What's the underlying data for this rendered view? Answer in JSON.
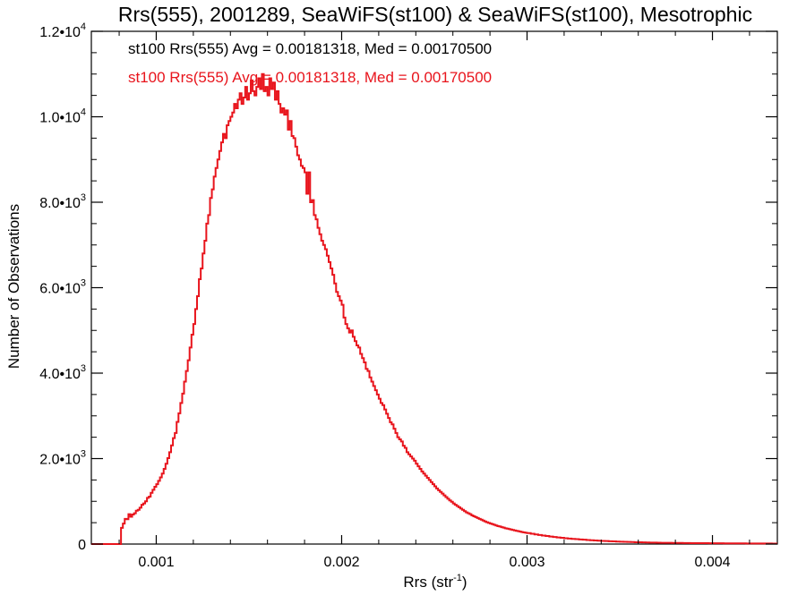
{
  "chart_data": {
    "type": "histogram",
    "title": "Rrs(555), 2001289, SeaWiFS(st100) & SeaWiFS(st100), Mesotrophic",
    "xlabel_main": "Rrs (str",
    "xlabel_sup": "-1",
    "xlabel_close": ")",
    "ylabel": "Number of Observations",
    "xlim": [
      0.00065,
      0.00435
    ],
    "ylim": [
      0,
      12000
    ],
    "x_ticks": [
      {
        "value": 0.001,
        "label": "0.001"
      },
      {
        "value": 0.002,
        "label": "0.002"
      },
      {
        "value": 0.003,
        "label": "0.003"
      },
      {
        "value": 0.004,
        "label": "0.004"
      }
    ],
    "y_ticks": [
      {
        "value": 0,
        "mant": "0",
        "exp": ""
      },
      {
        "value": 2000,
        "mant": "2.0•10",
        "exp": "3"
      },
      {
        "value": 4000,
        "mant": "4.0•10",
        "exp": "3"
      },
      {
        "value": 6000,
        "mant": "6.0•10",
        "exp": "3"
      },
      {
        "value": 8000,
        "mant": "8.0•10",
        "exp": "3"
      },
      {
        "value": 10000,
        "mant": "1.0•10",
        "exp": "4"
      },
      {
        "value": 12000,
        "mant": "1.2•10",
        "exp": "4"
      }
    ],
    "annotations": [
      {
        "text": "st100 Rrs(555) Avg = 0.00181318, Med = 0.00170500",
        "color": "#000000"
      },
      {
        "text": "st100 Rrs(555) Avg = 0.00181318, Med = 0.00170500",
        "color": "#e8141c"
      }
    ],
    "series": [
      {
        "color": "#e8141c",
        "bin_width": 1e-05,
        "bins": [
          [
            0.00065,
            0
          ],
          [
            0.0008,
            0
          ],
          [
            0.00081,
            380
          ],
          [
            0.00082,
            480
          ],
          [
            0.00083,
            590
          ],
          [
            0.00084,
            580
          ],
          [
            0.00085,
            700
          ],
          [
            0.00086,
            640
          ],
          [
            0.00087,
            690
          ],
          [
            0.00088,
            720
          ],
          [
            0.00089,
            780
          ],
          [
            0.0009,
            800
          ],
          [
            0.00091,
            850
          ],
          [
            0.00092,
            920
          ],
          [
            0.00093,
            950
          ],
          [
            0.00094,
            1000
          ],
          [
            0.00095,
            1080
          ],
          [
            0.00096,
            1110
          ],
          [
            0.00097,
            1200
          ],
          [
            0.00098,
            1270
          ],
          [
            0.00099,
            1340
          ],
          [
            0.001,
            1400
          ],
          [
            0.00101,
            1480
          ],
          [
            0.00102,
            1560
          ],
          [
            0.00103,
            1650
          ],
          [
            0.00104,
            1760
          ],
          [
            0.00105,
            1880
          ],
          [
            0.00106,
            2010
          ],
          [
            0.00107,
            2150
          ],
          [
            0.00108,
            2310
          ],
          [
            0.00109,
            2480
          ],
          [
            0.0011,
            2600
          ],
          [
            0.00111,
            2860
          ],
          [
            0.00112,
            3060
          ],
          [
            0.00113,
            3300
          ],
          [
            0.00114,
            3520
          ],
          [
            0.00115,
            3800
          ],
          [
            0.00116,
            4050
          ],
          [
            0.00117,
            4300
          ],
          [
            0.00118,
            4600
          ],
          [
            0.00119,
            4900
          ],
          [
            0.0012,
            5150
          ],
          [
            0.00121,
            5500
          ],
          [
            0.00122,
            5800
          ],
          [
            0.00123,
            6200
          ],
          [
            0.00124,
            6450
          ],
          [
            0.00125,
            6800
          ],
          [
            0.00126,
            7100
          ],
          [
            0.00127,
            7500
          ],
          [
            0.00128,
            7700
          ],
          [
            0.00129,
            8100
          ],
          [
            0.0013,
            8300
          ],
          [
            0.00131,
            8600
          ],
          [
            0.00132,
            8800
          ],
          [
            0.00133,
            9000
          ],
          [
            0.00134,
            9200
          ],
          [
            0.00135,
            9400
          ],
          [
            0.00136,
            9600
          ],
          [
            0.00137,
            9500
          ],
          [
            0.00138,
            9800
          ],
          [
            0.00139,
            9900
          ],
          [
            0.0014,
            10000
          ],
          [
            0.00141,
            10100
          ],
          [
            0.00142,
            10300
          ],
          [
            0.00143,
            10200
          ],
          [
            0.00144,
            10400
          ],
          [
            0.00145,
            10550
          ],
          [
            0.00146,
            10300
          ],
          [
            0.00147,
            10450
          ],
          [
            0.00148,
            10700
          ],
          [
            0.00149,
            10400
          ],
          [
            0.0015,
            10550
          ],
          [
            0.00151,
            10850
          ],
          [
            0.00152,
            10600
          ],
          [
            0.00153,
            10500
          ],
          [
            0.00154,
            10700
          ],
          [
            0.00155,
            10900
          ],
          [
            0.00156,
            10650
          ],
          [
            0.00157,
            11000
          ],
          [
            0.00158,
            10600
          ],
          [
            0.00159,
            10700
          ],
          [
            0.0016,
            10500
          ],
          [
            0.00161,
            10900
          ],
          [
            0.00162,
            10650
          ],
          [
            0.00163,
            10800
          ],
          [
            0.00164,
            10400
          ],
          [
            0.00165,
            10600
          ],
          [
            0.00166,
            10300
          ],
          [
            0.00167,
            10100
          ],
          [
            0.00168,
            10200
          ],
          [
            0.00169,
            10050
          ],
          [
            0.0017,
            10150
          ],
          [
            0.00171,
            9700
          ],
          [
            0.00172,
            9900
          ],
          [
            0.00173,
            9550
          ],
          [
            0.00174,
            9500
          ],
          [
            0.00175,
            9300
          ],
          [
            0.00176,
            9100
          ],
          [
            0.00177,
            9000
          ],
          [
            0.00178,
            8850
          ],
          [
            0.00179,
            8800
          ],
          [
            0.0018,
            8700
          ],
          [
            0.00181,
            8200
          ],
          [
            0.00182,
            8700
          ],
          [
            0.00183,
            8000
          ],
          [
            0.00184,
            8050
          ],
          [
            0.00185,
            7700
          ],
          [
            0.00186,
            7600
          ],
          [
            0.00187,
            7400
          ],
          [
            0.00188,
            7250
          ],
          [
            0.00189,
            7100
          ],
          [
            0.0019,
            7000
          ],
          [
            0.00191,
            6900
          ],
          [
            0.00192,
            6750
          ],
          [
            0.00193,
            6600
          ],
          [
            0.00194,
            6450
          ],
          [
            0.00195,
            6300
          ],
          [
            0.00196,
            6100
          ],
          [
            0.00197,
            5900
          ],
          [
            0.00198,
            5800
          ],
          [
            0.00199,
            5700
          ],
          [
            0.002,
            5600
          ],
          [
            0.00201,
            5300
          ],
          [
            0.00202,
            5150
          ],
          [
            0.00203,
            5050
          ],
          [
            0.00204,
            4950
          ],
          [
            0.00205,
            5000
          ],
          [
            0.00206,
            4850
          ],
          [
            0.00207,
            4750
          ],
          [
            0.00208,
            4650
          ],
          [
            0.00209,
            4600
          ],
          [
            0.0021,
            4450
          ],
          [
            0.00211,
            4350
          ],
          [
            0.00212,
            4250
          ],
          [
            0.00213,
            4100
          ],
          [
            0.00214,
            4050
          ],
          [
            0.00215,
            3900
          ],
          [
            0.00216,
            3800
          ],
          [
            0.00217,
            3700
          ],
          [
            0.00218,
            3600
          ],
          [
            0.00219,
            3500
          ],
          [
            0.0022,
            3400
          ],
          [
            0.00221,
            3300
          ],
          [
            0.00222,
            3250
          ],
          [
            0.00223,
            3150
          ],
          [
            0.00224,
            3050
          ],
          [
            0.00225,
            2950
          ],
          [
            0.00226,
            2850
          ],
          [
            0.00227,
            2800
          ],
          [
            0.00228,
            2700
          ],
          [
            0.00229,
            2600
          ],
          [
            0.0023,
            2500
          ],
          [
            0.00231,
            2450
          ],
          [
            0.00232,
            2400
          ],
          [
            0.00233,
            2300
          ],
          [
            0.00234,
            2250
          ],
          [
            0.00235,
            2150
          ],
          [
            0.00236,
            2100
          ],
          [
            0.00237,
            2050
          ],
          [
            0.00238,
            2000
          ],
          [
            0.00239,
            1950
          ],
          [
            0.0024,
            1880
          ],
          [
            0.00241,
            1820
          ],
          [
            0.00242,
            1760
          ],
          [
            0.00243,
            1700
          ],
          [
            0.00244,
            1650
          ],
          [
            0.00245,
            1600
          ],
          [
            0.00246,
            1550
          ],
          [
            0.00247,
            1500
          ],
          [
            0.00248,
            1450
          ],
          [
            0.00249,
            1400
          ],
          [
            0.0025,
            1350
          ],
          [
            0.00251,
            1300
          ],
          [
            0.00252,
            1260
          ],
          [
            0.00253,
            1220
          ],
          [
            0.00254,
            1180
          ],
          [
            0.00255,
            1140
          ],
          [
            0.00256,
            1100
          ],
          [
            0.00257,
            1060
          ],
          [
            0.00258,
            1020
          ],
          [
            0.00259,
            990
          ],
          [
            0.0026,
            950
          ],
          [
            0.00261,
            920
          ],
          [
            0.00262,
            890
          ],
          [
            0.00263,
            860
          ],
          [
            0.00264,
            830
          ],
          [
            0.00265,
            800
          ],
          [
            0.00266,
            770
          ],
          [
            0.00267,
            740
          ],
          [
            0.00268,
            720
          ],
          [
            0.00269,
            700
          ],
          [
            0.0027,
            670
          ],
          [
            0.00271,
            650
          ],
          [
            0.00272,
            630
          ],
          [
            0.00273,
            610
          ],
          [
            0.00274,
            590
          ],
          [
            0.00275,
            570
          ],
          [
            0.00276,
            550
          ],
          [
            0.00277,
            530
          ],
          [
            0.00278,
            510
          ],
          [
            0.00279,
            495
          ],
          [
            0.0028,
            480
          ],
          [
            0.00281,
            465
          ],
          [
            0.00282,
            450
          ],
          [
            0.00283,
            435
          ],
          [
            0.00284,
            420
          ],
          [
            0.00285,
            410
          ],
          [
            0.00286,
            395
          ],
          [
            0.00287,
            385
          ],
          [
            0.00288,
            370
          ],
          [
            0.00289,
            360
          ],
          [
            0.0029,
            350
          ],
          [
            0.00291,
            340
          ],
          [
            0.00292,
            330
          ],
          [
            0.00293,
            320
          ],
          [
            0.00294,
            310
          ],
          [
            0.00295,
            300
          ],
          [
            0.00296,
            290
          ],
          [
            0.00297,
            280
          ],
          [
            0.00298,
            272
          ],
          [
            0.00299,
            264
          ],
          [
            0.003,
            256
          ],
          [
            0.00302,
            240
          ],
          [
            0.00304,
            226
          ],
          [
            0.00306,
            212
          ],
          [
            0.00308,
            200
          ],
          [
            0.0031,
            188
          ],
          [
            0.00312,
            176
          ],
          [
            0.00314,
            165
          ],
          [
            0.00316,
            155
          ],
          [
            0.00318,
            146
          ],
          [
            0.0032,
            137
          ],
          [
            0.00322,
            129
          ],
          [
            0.00324,
            121
          ],
          [
            0.00326,
            114
          ],
          [
            0.00328,
            107
          ],
          [
            0.0033,
            101
          ],
          [
            0.00332,
            95
          ],
          [
            0.00334,
            89
          ],
          [
            0.00336,
            84
          ],
          [
            0.00338,
            79
          ],
          [
            0.0034,
            74
          ],
          [
            0.00342,
            70
          ],
          [
            0.00344,
            66
          ],
          [
            0.00346,
            62
          ],
          [
            0.00348,
            58
          ],
          [
            0.0035,
            55
          ],
          [
            0.00352,
            52
          ],
          [
            0.00354,
            49
          ],
          [
            0.00356,
            46
          ],
          [
            0.00358,
            43
          ],
          [
            0.0036,
            41
          ],
          [
            0.00362,
            39
          ],
          [
            0.00364,
            37
          ],
          [
            0.00366,
            35
          ],
          [
            0.00368,
            33
          ],
          [
            0.0037,
            31
          ],
          [
            0.00372,
            30
          ],
          [
            0.00374,
            29
          ],
          [
            0.00376,
            28
          ],
          [
            0.00378,
            27
          ],
          [
            0.0038,
            26
          ],
          [
            0.00382,
            25
          ],
          [
            0.00384,
            24
          ],
          [
            0.00386,
            23
          ],
          [
            0.00388,
            22
          ],
          [
            0.0039,
            21
          ],
          [
            0.00392,
            21
          ],
          [
            0.00394,
            20
          ],
          [
            0.00396,
            20
          ],
          [
            0.00398,
            19
          ],
          [
            0.004,
            19
          ],
          [
            0.00402,
            18
          ],
          [
            0.00404,
            18
          ],
          [
            0.00406,
            17
          ],
          [
            0.00408,
            17
          ],
          [
            0.0041,
            16
          ],
          [
            0.00412,
            16
          ],
          [
            0.00414,
            15
          ],
          [
            0.00416,
            15
          ],
          [
            0.00418,
            14
          ],
          [
            0.0042,
            14
          ],
          [
            0.00422,
            13
          ],
          [
            0.00424,
            13
          ],
          [
            0.00426,
            12
          ],
          [
            0.00428,
            12
          ],
          [
            0.0043,
            12
          ],
          [
            0.00432,
            11
          ],
          [
            0.00434,
            11
          ]
        ]
      }
    ]
  }
}
